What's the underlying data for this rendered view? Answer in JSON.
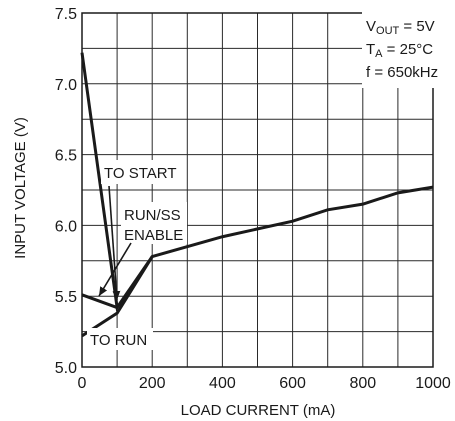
{
  "chart_data": {
    "type": "line",
    "xlabel": "LOAD CURRENT (mA)",
    "ylabel": "INPUT VOLTAGE (V)",
    "xlim": [
      0,
      1000
    ],
    "ylim": [
      5.0,
      7.5
    ],
    "x_ticks": [
      "0",
      "200",
      "400",
      "600",
      "800",
      "1000"
    ],
    "y_ticks": [
      "5.0",
      "5.5",
      "6.0",
      "6.5",
      "7.0",
      "7.5"
    ],
    "grid": true,
    "conditions": {
      "vout_main": "V",
      "vout_sub": "OUT",
      "vout_value": " = 5V",
      "ta_main": "T",
      "ta_sub": "A",
      "ta_value": " = 25°C",
      "freq": "f = 650kHz"
    },
    "series": [
      {
        "name": "TO START",
        "x": [
          0,
          100,
          200,
          400,
          600,
          700,
          800,
          900,
          1000
        ],
        "y": [
          7.22,
          5.42,
          5.78,
          5.92,
          6.03,
          6.11,
          6.15,
          6.23,
          6.27
        ]
      },
      {
        "name": "TO RUN",
        "x": [
          0,
          100,
          200
        ],
        "y": [
          5.22,
          5.38,
          5.78
        ]
      },
      {
        "name": "RUN/SS ENABLE",
        "x": [
          0,
          100
        ],
        "y": [
          5.51,
          5.42
        ]
      }
    ],
    "annotations": {
      "to_start": "TO START",
      "run_ss": "RUN/SS",
      "enable": "ENABLE",
      "to_run": "TO RUN"
    }
  }
}
